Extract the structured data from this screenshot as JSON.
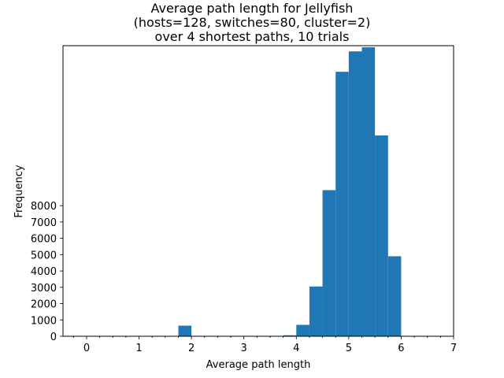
{
  "chart_data": {
    "type": "bar",
    "title": [
      "Average path length for Jellyfish",
      "(hosts=128, switches=80, cluster=2)",
      "over 4 shortest paths, 10 trials"
    ],
    "xlabel": "Average path length",
    "ylabel": "Frequency",
    "xlim": [
      -0.45,
      7.0
    ],
    "ylim": [
      0,
      17800
    ],
    "x_ticks": [
      0,
      1,
      2,
      3,
      4,
      5,
      6,
      7
    ],
    "x_tick_labels": [
      "0",
      "1",
      "2",
      "3",
      "4",
      "5",
      "6",
      "7"
    ],
    "x_minor_step": 0.25,
    "y_ticks": [
      0,
      1000,
      2000,
      3000,
      4000,
      5000,
      6000,
      7000,
      8000
    ],
    "y_tick_labels": [
      "0",
      "1000",
      "2000",
      "3000",
      "4000",
      "5000",
      "6000",
      "7000",
      "8000"
    ],
    "bar_width": 0.25,
    "bars": [
      {
        "x": 1.875,
        "value": 650
      },
      {
        "x": 3.875,
        "value": 60
      },
      {
        "x": 4.125,
        "value": 700
      },
      {
        "x": 4.375,
        "value": 3050
      },
      {
        "x": 4.625,
        "value": 8950
      },
      {
        "x": 4.875,
        "value": 16200
      },
      {
        "x": 5.125,
        "value": 17450
      },
      {
        "x": 5.375,
        "value": 17700
      },
      {
        "x": 5.625,
        "value": 12300
      },
      {
        "x": 5.875,
        "value": 4900
      }
    ],
    "bar_color": "#1f77b4"
  }
}
